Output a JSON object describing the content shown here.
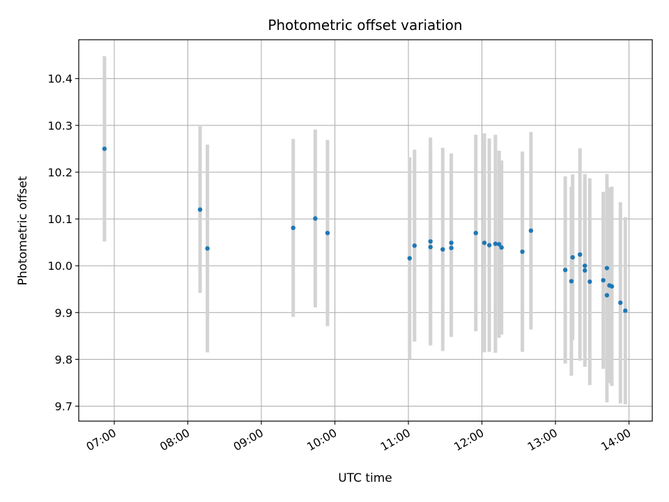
{
  "chart_data": {
    "type": "scatter",
    "title": "Photometric offset variation",
    "xlabel": "UTC time",
    "ylabel": "Photometric offset",
    "x_ticks": [
      "07:00",
      "08:00",
      "09:00",
      "10:00",
      "11:00",
      "12:00",
      "13:00",
      "14:00"
    ],
    "y_ticks": [
      "9.7",
      "9.8",
      "9.9",
      "10.0",
      "10.1",
      "10.2",
      "10.3",
      "10.4"
    ],
    "xlim": [
      "06:31",
      "14:19"
    ],
    "ylim": [
      9.668,
      10.483
    ],
    "grid": true,
    "point_color": "#1f77b4",
    "errorbar_color": "#d3d3d3",
    "points": [
      {
        "t": "06:52",
        "y": 10.25,
        "err": 0.198
      },
      {
        "t": "08:10",
        "y": 10.12,
        "err": 0.178
      },
      {
        "t": "08:16",
        "y": 10.037,
        "err": 0.222
      },
      {
        "t": "09:26",
        "y": 10.081,
        "err": 0.19
      },
      {
        "t": "09:44",
        "y": 10.101,
        "err": 0.19
      },
      {
        "t": "09:54",
        "y": 10.07,
        "err": 0.199
      },
      {
        "t": "11:01",
        "y": 10.016,
        "err": 0.216
      },
      {
        "t": "11:05",
        "y": 10.043,
        "err": 0.205
      },
      {
        "t": "11:18",
        "y": 10.052,
        "err": 0.222
      },
      {
        "t": "11:18",
        "y": 10.04,
        "err": 0.21
      },
      {
        "t": "11:28",
        "y": 10.035,
        "err": 0.217
      },
      {
        "t": "11:35",
        "y": 10.049,
        "err": 0.191
      },
      {
        "t": "11:35",
        "y": 10.038,
        "err": 0.19
      },
      {
        "t": "11:55",
        "y": 10.07,
        "err": 0.21
      },
      {
        "t": "12:02",
        "y": 10.049,
        "err": 0.234
      },
      {
        "t": "12:06",
        "y": 10.044,
        "err": 0.228
      },
      {
        "t": "12:11",
        "y": 10.047,
        "err": 0.233
      },
      {
        "t": "12:14",
        "y": 10.046,
        "err": 0.2
      },
      {
        "t": "12:16",
        "y": 10.039,
        "err": 0.186
      },
      {
        "t": "12:33",
        "y": 10.03,
        "err": 0.214
      },
      {
        "t": "12:40",
        "y": 10.075,
        "err": 0.211
      },
      {
        "t": "13:08",
        "y": 9.991,
        "err": 0.2
      },
      {
        "t": "13:13",
        "y": 9.967,
        "err": 0.202
      },
      {
        "t": "13:14",
        "y": 10.018,
        "err": 0.177
      },
      {
        "t": "13:20",
        "y": 10.024,
        "err": 0.227
      },
      {
        "t": "13:24",
        "y": 9.99,
        "err": 0.206
      },
      {
        "t": "13:24",
        "y": 10.0,
        "err": 0.185
      },
      {
        "t": "13:28",
        "y": 9.966,
        "err": 0.221
      },
      {
        "t": "13:39",
        "y": 9.969,
        "err": 0.189
      },
      {
        "t": "13:42",
        "y": 9.995,
        "err": 0.201
      },
      {
        "t": "13:42",
        "y": 9.937,
        "err": 0.229
      },
      {
        "t": "13:44",
        "y": 9.958,
        "err": 0.209
      },
      {
        "t": "13:46",
        "y": 9.956,
        "err": 0.213
      },
      {
        "t": "13:53",
        "y": 9.921,
        "err": 0.215
      },
      {
        "t": "13:57",
        "y": 9.904,
        "err": 0.2
      }
    ]
  }
}
